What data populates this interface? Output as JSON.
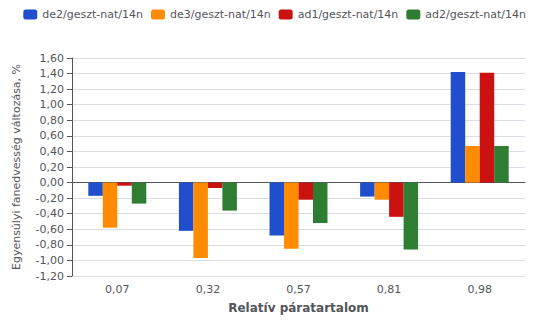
{
  "chart_data": {
    "type": "bar",
    "categories": [
      "0,07",
      "0,32",
      "0,57",
      "0,81",
      "0,98"
    ],
    "series": [
      {
        "name": "de2/geszt-nat/14n",
        "color": "#1F4FCC",
        "values": [
          -0.17,
          -0.62,
          -0.68,
          -0.18,
          1.42
        ]
      },
      {
        "name": "de3/geszt-nat/14n",
        "color": "#FF8C00",
        "values": [
          -0.58,
          -0.97,
          -0.85,
          -0.22,
          0.47
        ]
      },
      {
        "name": "ad1/geszt-nat/14n",
        "color": "#CC1111",
        "values": [
          -0.04,
          -0.07,
          -0.22,
          -0.44,
          1.41
        ]
      },
      {
        "name": "ad2/geszt-nat/14n",
        "color": "#2E7D32",
        "values": [
          -0.27,
          -0.36,
          -0.52,
          -0.86,
          0.47
        ]
      }
    ],
    "xlabel": "Relatív páratartalom",
    "ylabel": "Egyensúlyi fanedvesség változása, %",
    "ylim": [
      -1.2,
      1.6
    ],
    "yticks": [
      {
        "value": -1.2,
        "label": "-1,20"
      },
      {
        "value": -1.0,
        "label": "-1,00"
      },
      {
        "value": -0.8,
        "label": "-0,80"
      },
      {
        "value": -0.6,
        "label": "-0,60"
      },
      {
        "value": -0.4,
        "label": "-0,40"
      },
      {
        "value": -0.2,
        "label": "-0,20"
      },
      {
        "value": 0.0,
        "label": "0,00"
      },
      {
        "value": 0.2,
        "label": "0,20"
      },
      {
        "value": 0.4,
        "label": "0,40"
      },
      {
        "value": 0.6,
        "label": "0,60"
      },
      {
        "value": 0.8,
        "label": "0,80"
      },
      {
        "value": 1.0,
        "label": "1,00"
      },
      {
        "value": 1.2,
        "label": "1,20"
      },
      {
        "value": 1.4,
        "label": "1,40"
      },
      {
        "value": 1.6,
        "label": "1,60"
      }
    ],
    "grid": true,
    "legend": "upper right"
  }
}
